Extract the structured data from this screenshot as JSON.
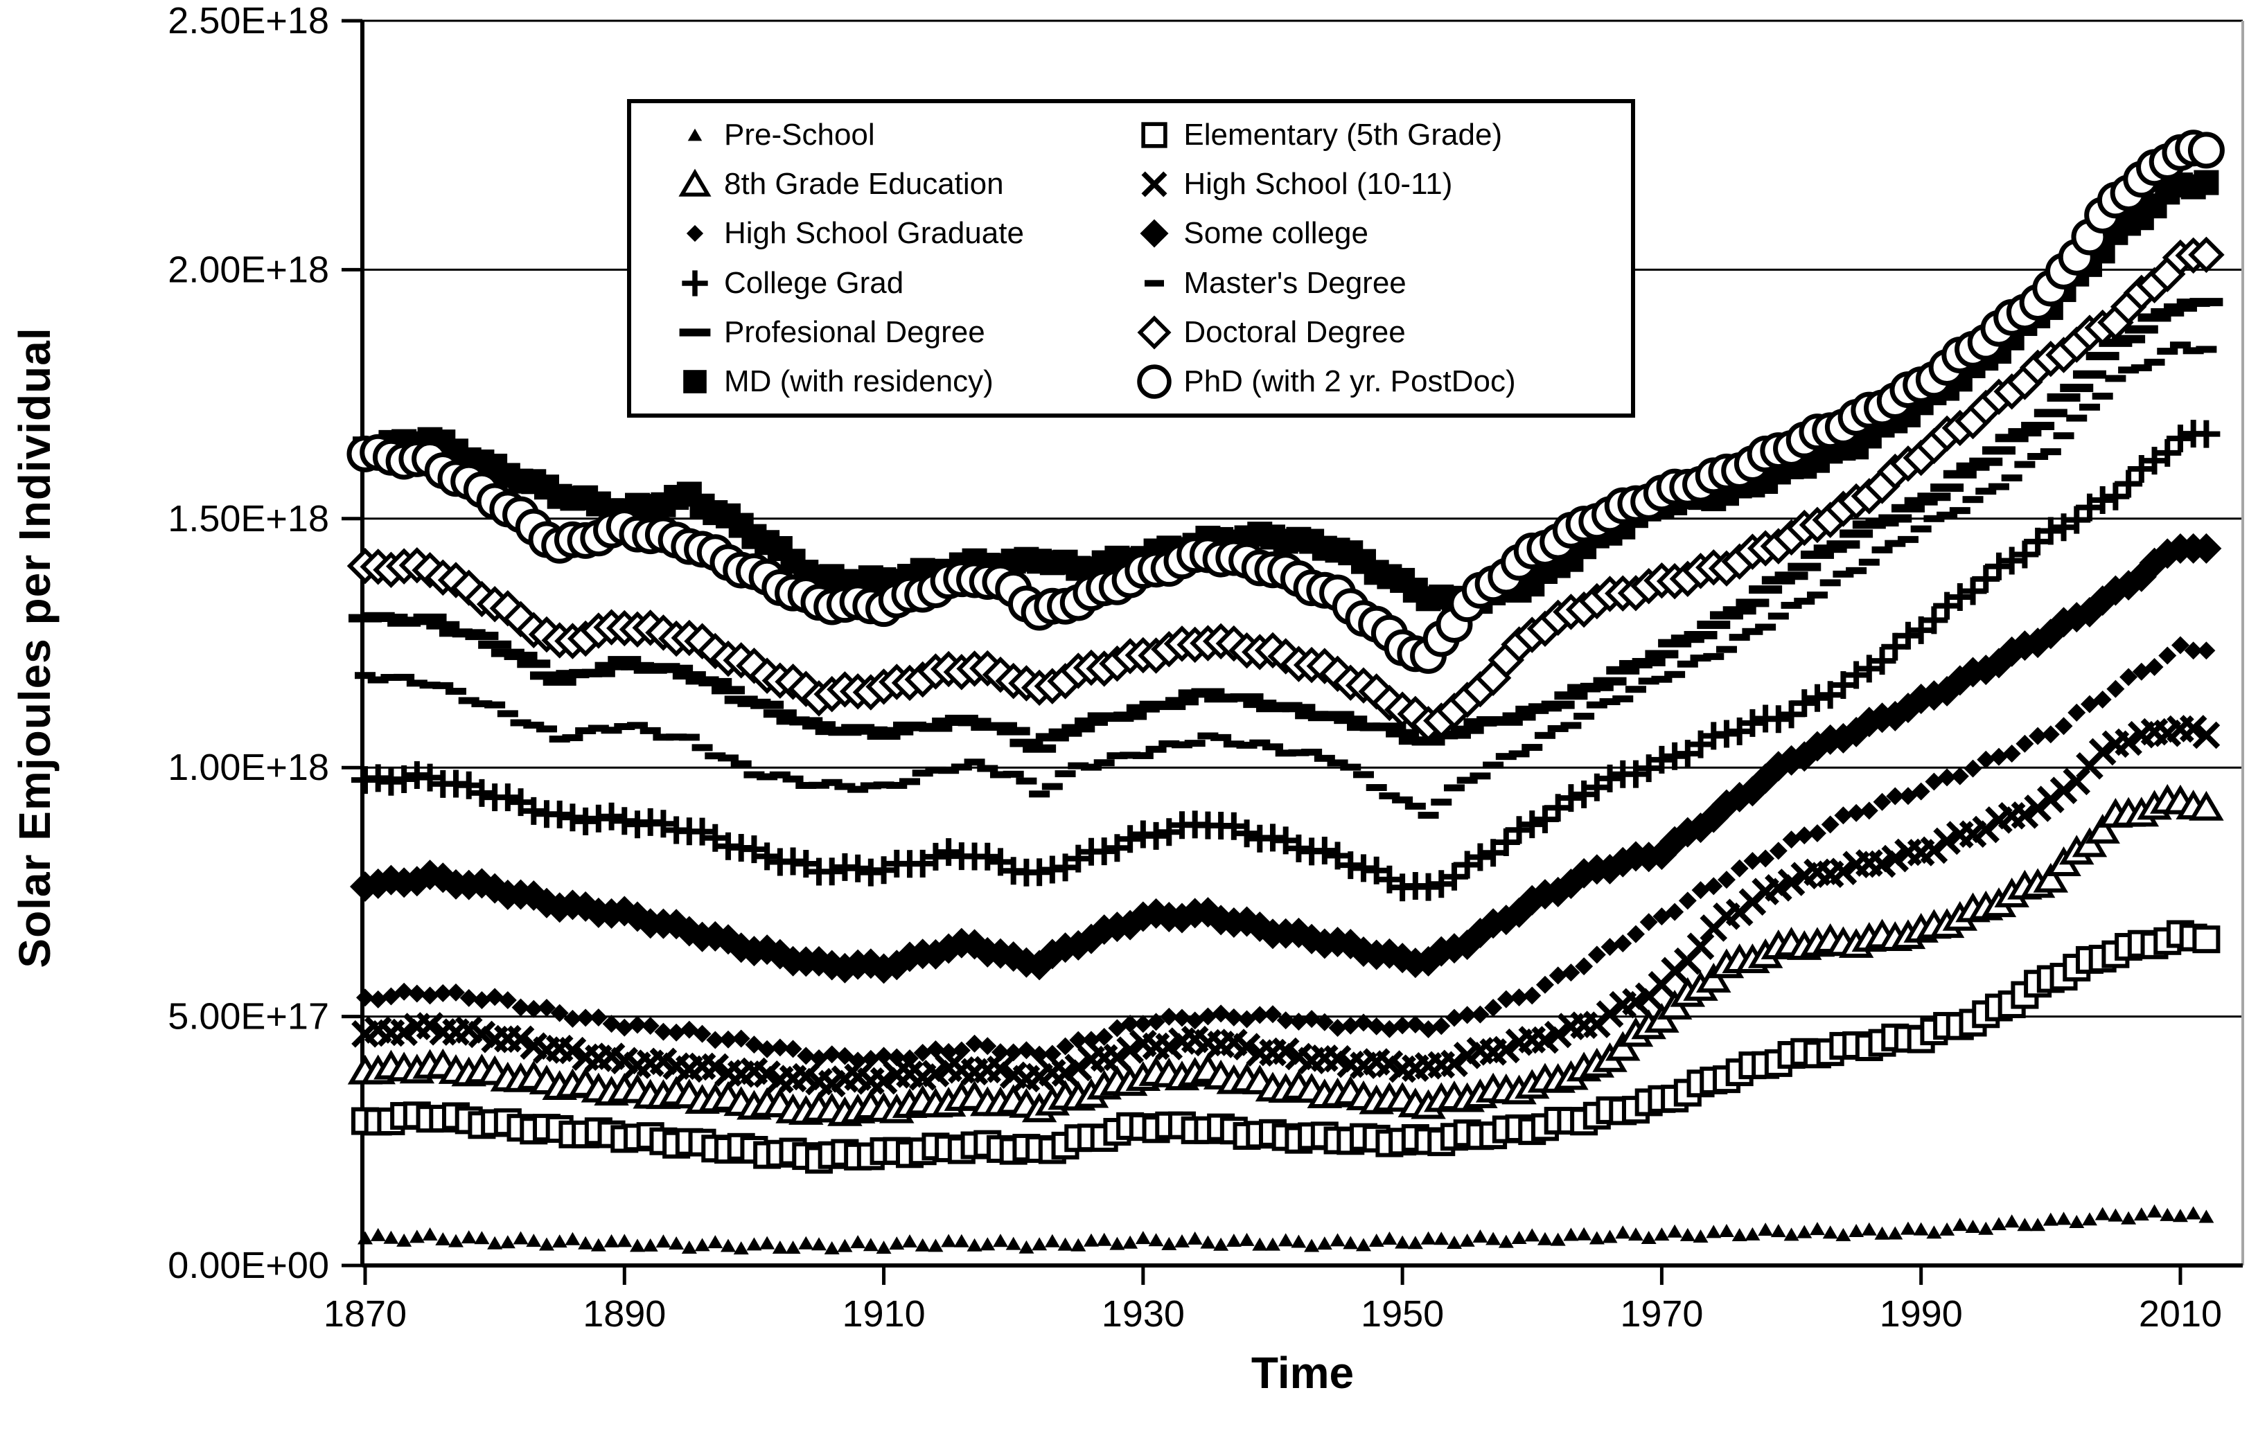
{
  "figure": {
    "background_color": "#ffffff",
    "ink_color": "#000000",
    "right_border_color": "#a6a6a6"
  },
  "y_axis": {
    "title": "Solar Emjoules per Individual",
    "tick_labels": [
      "0.00E+00",
      "5.00E+17",
      "1.00E+18",
      "1.50E+18",
      "2.00E+18",
      "2.50E+18"
    ],
    "min": 0,
    "max_e18": 2.5,
    "gridlines": true
  },
  "x_axis": {
    "title": "Time",
    "tick_labels": [
      "1870",
      "1890",
      "1910",
      "1930",
      "1950",
      "1970",
      "1990",
      "2010"
    ],
    "ticks": [
      1870,
      1890,
      1910,
      1930,
      1950,
      1970,
      1990,
      2010
    ],
    "min": 1870,
    "max": 2014.5
  },
  "legend": {
    "position": "top-center",
    "columns": 2
  },
  "chart_data": {
    "type": "scatter",
    "title": "",
    "xlabel": "Time",
    "ylabel": "Solar Emjoules per Individual",
    "ylim_e18": [
      0,
      2.5
    ],
    "unit": "solar emjoules per individual (values in 1E+18)",
    "x_years": [
      1870,
      1875,
      1880,
      1885,
      1890,
      1895,
      1900,
      1905,
      1910,
      1915,
      1917,
      1920,
      1922,
      1925,
      1930,
      1935,
      1940,
      1945,
      1950,
      1952,
      1955,
      1960,
      1965,
      1970,
      1975,
      1980,
      1985,
      1990,
      1995,
      2000,
      2005,
      2010,
      2012
    ],
    "series": [
      {
        "label": "Pre-School",
        "marker": "triangle-small-filled",
        "values_e18": [
          0.055,
          0.057,
          0.05,
          0.048,
          0.045,
          0.042,
          0.04,
          0.04,
          0.042,
          0.045,
          0.046,
          0.043,
          0.042,
          0.046,
          0.05,
          0.048,
          0.046,
          0.045,
          0.05,
          0.05,
          0.052,
          0.055,
          0.06,
          0.062,
          0.065,
          0.068,
          0.067,
          0.07,
          0.08,
          0.088,
          0.1,
          0.105,
          0.098
        ]
      },
      {
        "label": "Elementary (5th Grade)",
        "marker": "square-open",
        "values_e18": [
          0.29,
          0.3,
          0.285,
          0.27,
          0.26,
          0.245,
          0.23,
          0.218,
          0.225,
          0.235,
          0.24,
          0.235,
          0.23,
          0.25,
          0.28,
          0.275,
          0.26,
          0.255,
          0.25,
          0.25,
          0.26,
          0.275,
          0.3,
          0.33,
          0.38,
          0.42,
          0.44,
          0.46,
          0.5,
          0.575,
          0.63,
          0.66,
          0.655
        ]
      },
      {
        "label": "8th Grade Education",
        "marker": "triangle-open",
        "values_e18": [
          0.39,
          0.4,
          0.385,
          0.365,
          0.35,
          0.34,
          0.325,
          0.31,
          0.315,
          0.33,
          0.335,
          0.325,
          0.32,
          0.34,
          0.38,
          0.387,
          0.36,
          0.345,
          0.33,
          0.325,
          0.34,
          0.36,
          0.4,
          0.5,
          0.6,
          0.645,
          0.65,
          0.67,
          0.72,
          0.78,
          0.9,
          0.935,
          0.92
        ]
      },
      {
        "label": "High School (10-11)",
        "marker": "x-cross",
        "values_e18": [
          0.465,
          0.478,
          0.46,
          0.432,
          0.41,
          0.4,
          0.385,
          0.37,
          0.375,
          0.39,
          0.395,
          0.385,
          0.375,
          0.4,
          0.44,
          0.452,
          0.428,
          0.41,
          0.4,
          0.395,
          0.42,
          0.45,
          0.49,
          0.56,
          0.7,
          0.775,
          0.8,
          0.83,
          0.88,
          0.93,
          1.05,
          1.08,
          1.065
        ]
      },
      {
        "label": "High School Graduate",
        "marker": "diamond-small-filled",
        "values_e18": [
          0.538,
          0.548,
          0.535,
          0.506,
          0.483,
          0.468,
          0.445,
          0.42,
          0.415,
          0.432,
          0.441,
          0.43,
          0.423,
          0.447,
          0.49,
          0.5,
          0.5,
          0.483,
          0.48,
          0.478,
          0.5,
          0.548,
          0.62,
          0.7,
          0.78,
          0.85,
          0.91,
          0.956,
          1.01,
          1.07,
          1.16,
          1.24,
          1.235
        ]
      },
      {
        "label": "Some college",
        "marker": "diamond-large-filled",
        "values_e18": [
          0.761,
          0.78,
          0.757,
          0.724,
          0.706,
          0.673,
          0.635,
          0.605,
          0.6,
          0.638,
          0.645,
          0.615,
          0.608,
          0.648,
          0.7,
          0.705,
          0.672,
          0.647,
          0.615,
          0.612,
          0.65,
          0.729,
          0.795,
          0.83,
          0.92,
          1.016,
          1.075,
          1.132,
          1.2,
          1.27,
          1.35,
          1.445,
          1.44
        ]
      },
      {
        "label": "College Grad",
        "marker": "plus-cross",
        "values_e18": [
          0.975,
          0.98,
          0.945,
          0.9,
          0.895,
          0.875,
          0.83,
          0.795,
          0.795,
          0.825,
          0.826,
          0.798,
          0.784,
          0.816,
          0.862,
          0.89,
          0.856,
          0.821,
          0.765,
          0.755,
          0.8,
          0.886,
          0.965,
          1.01,
          1.07,
          1.11,
          1.18,
          1.28,
          1.38,
          1.47,
          1.55,
          1.66,
          1.67
        ]
      },
      {
        "label": "Master's Degree",
        "marker": "dash-small-filled",
        "values_e18": [
          1.185,
          1.17,
          1.12,
          1.06,
          1.085,
          1.055,
          0.99,
          0.965,
          0.96,
          1.0,
          1.005,
          0.985,
          0.95,
          1.0,
          1.03,
          1.06,
          1.04,
          1.015,
          0.93,
          0.91,
          0.975,
          1.045,
          1.12,
          1.18,
          1.24,
          1.32,
          1.4,
          1.48,
          1.55,
          1.64,
          1.78,
          1.845,
          1.84
        ]
      },
      {
        "label": "Profesional Degree",
        "marker": "dash-large-filled",
        "values_e18": [
          1.3,
          1.295,
          1.25,
          1.175,
          1.21,
          1.19,
          1.13,
          1.08,
          1.07,
          1.09,
          1.095,
          1.07,
          1.04,
          1.085,
          1.115,
          1.15,
          1.125,
          1.1,
          1.07,
          1.05,
          1.08,
          1.11,
          1.165,
          1.23,
          1.3,
          1.39,
          1.47,
          1.53,
          1.62,
          1.71,
          1.85,
          1.93,
          1.935
        ]
      },
      {
        "label": "Doctoral Degree",
        "marker": "diamond-open",
        "values_e18": [
          1.405,
          1.4,
          1.33,
          1.25,
          1.285,
          1.26,
          1.2,
          1.145,
          1.16,
          1.195,
          1.2,
          1.18,
          1.155,
          1.19,
          1.225,
          1.255,
          1.23,
          1.19,
          1.12,
          1.085,
          1.13,
          1.27,
          1.336,
          1.37,
          1.405,
          1.462,
          1.53,
          1.628,
          1.72,
          1.818,
          1.9,
          2.02,
          2.03
        ]
      },
      {
        "label": "MD (with residency)",
        "marker": "square-filled",
        "values_e18": [
          1.64,
          1.66,
          1.6,
          1.55,
          1.515,
          1.545,
          1.47,
          1.38,
          1.375,
          1.4,
          1.41,
          1.41,
          1.42,
          1.4,
          1.425,
          1.455,
          1.465,
          1.44,
          1.37,
          1.345,
          1.33,
          1.37,
          1.46,
          1.53,
          1.55,
          1.6,
          1.65,
          1.73,
          1.82,
          1.93,
          2.07,
          2.17,
          2.175
        ]
      },
      {
        "label": "PhD (with 2 yr. PostDoc)",
        "marker": "circle-open",
        "values_e18": [
          1.63,
          1.615,
          1.54,
          1.445,
          1.48,
          1.45,
          1.39,
          1.33,
          1.325,
          1.37,
          1.383,
          1.359,
          1.31,
          1.336,
          1.39,
          1.43,
          1.4,
          1.345,
          1.245,
          1.22,
          1.33,
          1.43,
          1.5,
          1.55,
          1.59,
          1.647,
          1.7,
          1.767,
          1.86,
          1.958,
          2.14,
          2.24,
          2.24
        ]
      }
    ]
  }
}
